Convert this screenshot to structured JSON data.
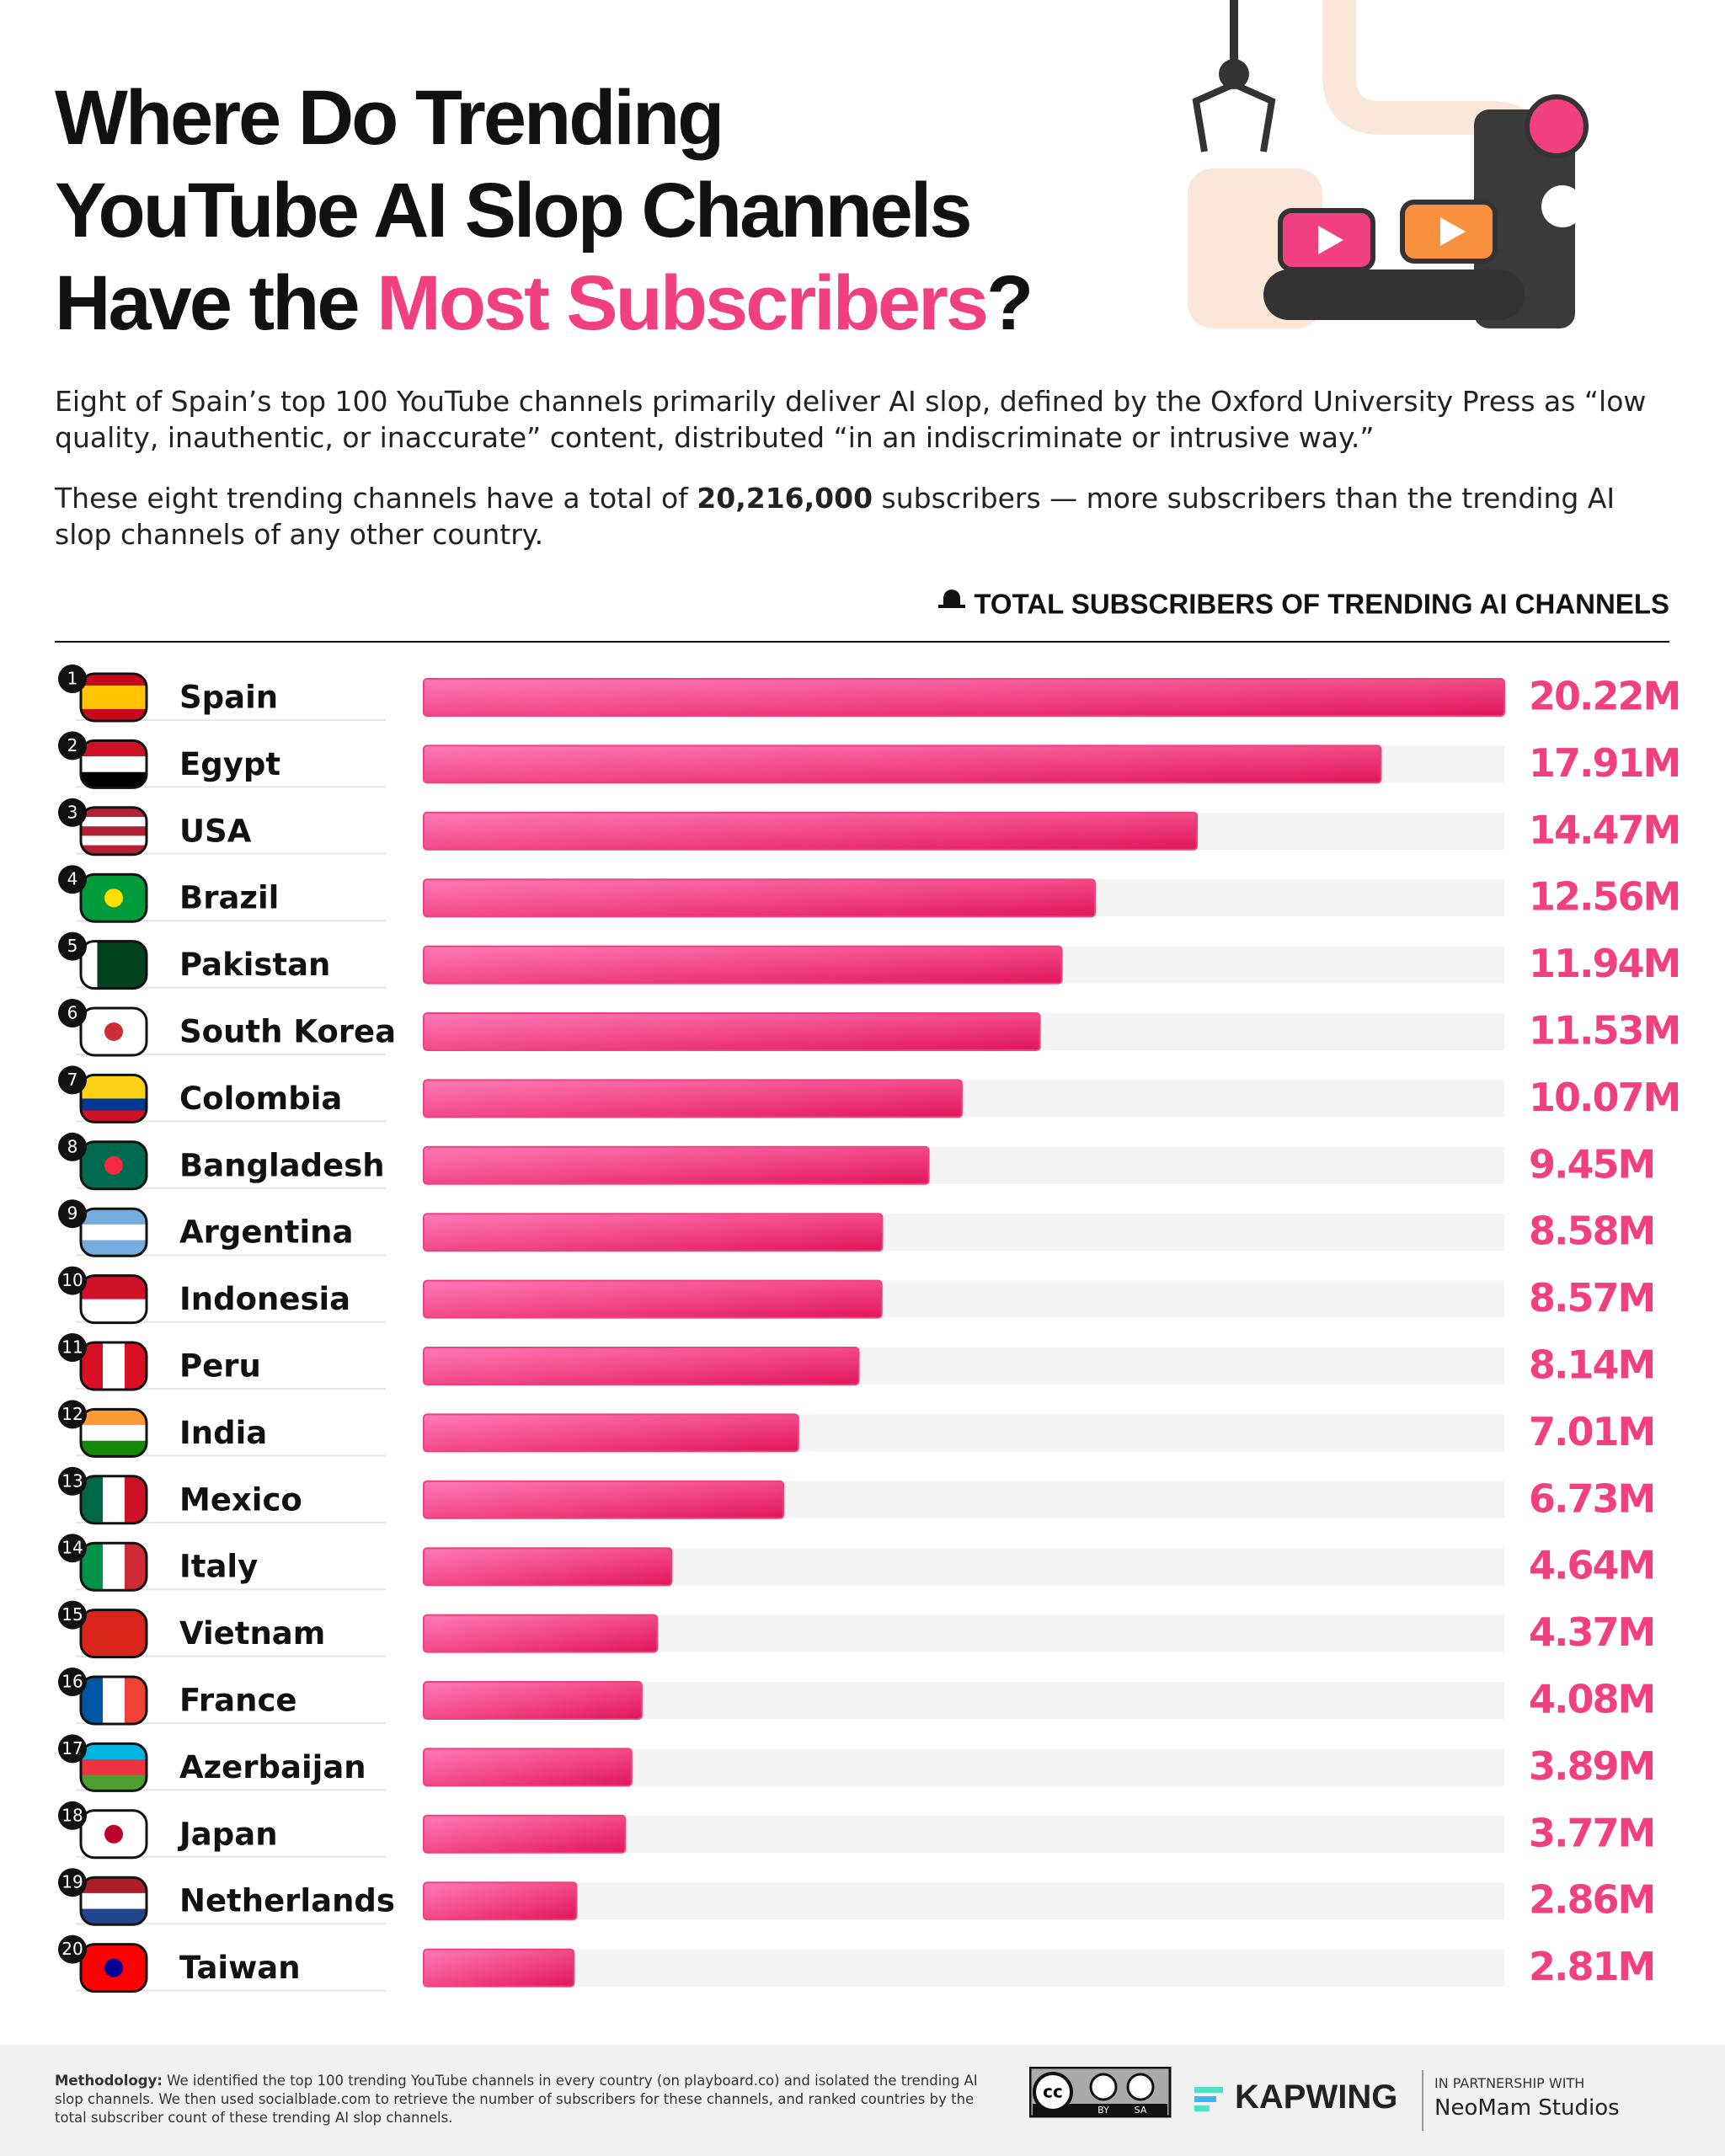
{
  "title": {
    "line1": "Where Do Trending",
    "line2": "YouTube AI Slop Channels",
    "line3_start": "Have the",
    "highlight": "Most Subscribers",
    "line3_end": "?"
  },
  "intro": {
    "paragraph1": "Eight of Spain’s top 100 YouTube channels primarily deliver AI slop, defined by the Oxford University Press as “low quality, inauthentic, or inaccurate” content, distributed “in an indiscriminate or intrusive way.”",
    "paragraph2_start": "These eight trending channels have a total of",
    "paragraph2_bold": "20,216,000",
    "paragraph2_end": "subscribers — more subscribers than the trending AI slop channels of any other country."
  },
  "chart_data": {
    "type": "bar",
    "orientation": "horizontal",
    "title": "TOTAL SUBSCRIBERS OF TRENDING AI CHANNELS",
    "color": "#f0407f",
    "track_color": "#f4f4f4",
    "ranks": [
      "1",
      "2",
      "3",
      "4",
      "5",
      "6",
      "7",
      "8",
      "9",
      "10",
      "11",
      "12",
      "13",
      "14",
      "15",
      "16",
      "17",
      "18",
      "19",
      "20"
    ],
    "categories": [
      "Spain",
      "Egypt",
      "USA",
      "Brazil",
      "Pakistan",
      "South Korea",
      "Colombia",
      "Bangladesh",
      "Argentina",
      "Indonesia",
      "Peru",
      "India",
      "Mexico",
      "Italy",
      "Vietnam",
      "France",
      "Azerbaijan",
      "Japan",
      "Netherlands",
      "Taiwan"
    ],
    "values": [
      20.22,
      17.91,
      14.47,
      12.56,
      11.94,
      11.53,
      10.07,
      9.45,
      8.58,
      8.57,
      8.14,
      7.01,
      6.73,
      4.64,
      4.37,
      4.08,
      3.89,
      3.77,
      2.86,
      2.81
    ],
    "value_labels": [
      "20.22M",
      "17.91M",
      "14.47M",
      "12.56M",
      "11.94M",
      "11.53M",
      "10.07M",
      "9.45M",
      "8.58M",
      "8.57M",
      "8.14M",
      "7.01M",
      "6.73M",
      "4.64M",
      "4.37M",
      "4.08M",
      "3.89M",
      "3.77M",
      "2.86M",
      "2.81M"
    ]
  },
  "footer": {
    "methodology_label": "Methodology:",
    "methodology": "We identified the top 100 trending YouTube channels in every country (on playboard.co) and isolated the trending AI slop channels. We then used socialblade.com to retrieve the number of subscribers for these channels, and ranked countries by the total subscriber count of these trending AI slop channels.",
    "license_by": "BY",
    "license_sa": "SA",
    "brand": "KAPWING",
    "partner_label": "IN PARTNERSHIP WITH",
    "partner": "NeoMam Studios"
  }
}
